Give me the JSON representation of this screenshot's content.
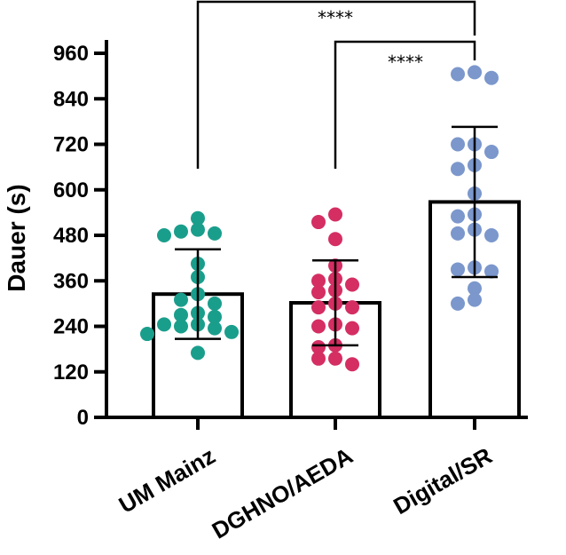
{
  "chart_data": {
    "type": "bar",
    "ylabel": "Dauer (s)",
    "xlabel": "",
    "ylim": [
      0,
      960
    ],
    "yticks": [
      0,
      120,
      240,
      360,
      480,
      600,
      720,
      840,
      960
    ],
    "yticks_labels": [
      "0",
      "120",
      "240",
      "360",
      "480",
      "600",
      "720",
      "840",
      "960"
    ],
    "categories": [
      "UM Mainz",
      "DGHNO/AEDA",
      "Digital/SR"
    ],
    "means": [
      325,
      302,
      568
    ],
    "sd": [
      118,
      112,
      198
    ],
    "colors": [
      "#1a9e8c",
      "#d42e63",
      "#7b97cc"
    ],
    "points": [
      [
        525,
        495,
        490,
        485,
        480,
        405,
        370,
        325,
        310,
        300,
        275,
        270,
        265,
        245,
        245,
        240,
        235,
        225,
        220,
        170
      ],
      [
        535,
        515,
        470,
        400,
        365,
        360,
        350,
        335,
        330,
        300,
        290,
        290,
        245,
        240,
        235,
        190,
        185,
        155,
        155,
        140
      ],
      [
        910,
        905,
        895,
        720,
        720,
        700,
        665,
        655,
        590,
        535,
        530,
        495,
        485,
        480,
        395,
        390,
        385,
        340,
        310,
        300
      ]
    ],
    "comparisons": [
      {
        "from": "UM Mainz",
        "to": "Digital/SR",
        "label": "****"
      },
      {
        "from": "DGHNO/AEDA",
        "to": "Digital/SR",
        "label": "****"
      }
    ]
  }
}
